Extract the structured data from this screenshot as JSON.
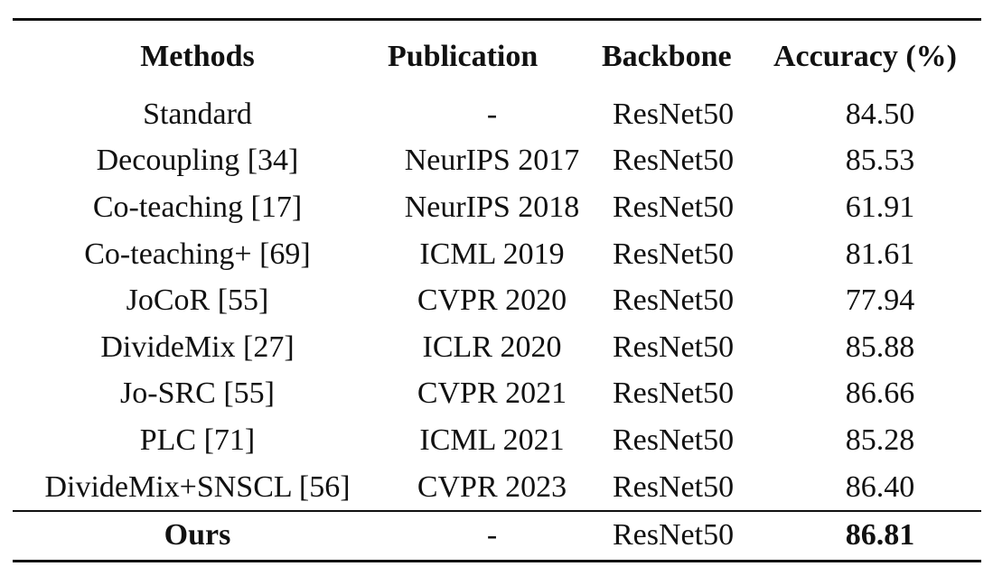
{
  "table": {
    "columns": [
      "Methods",
      "Publication",
      "Backbone",
      "Accuracy (%)"
    ],
    "rows": [
      {
        "method": "Standard",
        "publication": "-",
        "backbone": "ResNet50",
        "accuracy": "84.50"
      },
      {
        "method": "Decoupling [34]",
        "publication": "NeurIPS 2017",
        "backbone": "ResNet50",
        "accuracy": "85.53"
      },
      {
        "method": "Co-teaching [17]",
        "publication": "NeurIPS 2018",
        "backbone": "ResNet50",
        "accuracy": "61.91"
      },
      {
        "method": "Co-teaching+ [69]",
        "publication": "ICML 2019",
        "backbone": "ResNet50",
        "accuracy": "81.61"
      },
      {
        "method": "JoCoR [55]",
        "publication": "CVPR 2020",
        "backbone": "ResNet50",
        "accuracy": "77.94"
      },
      {
        "method": "DivideMix [27]",
        "publication": "ICLR 2020",
        "backbone": "ResNet50",
        "accuracy": "85.88"
      },
      {
        "method": "Jo-SRC [55]",
        "publication": "CVPR 2021",
        "backbone": "ResNet50",
        "accuracy": "86.66"
      },
      {
        "method": "PLC [71]",
        "publication": "ICML 2021",
        "backbone": "ResNet50",
        "accuracy": "85.28"
      },
      {
        "method": "DivideMix+SNSCL [56]",
        "publication": "CVPR 2023",
        "backbone": "ResNet50",
        "accuracy": "86.40"
      }
    ],
    "ours": {
      "method": "Ours",
      "publication": "-",
      "backbone": "ResNet50",
      "accuracy": "86.81"
    }
  }
}
